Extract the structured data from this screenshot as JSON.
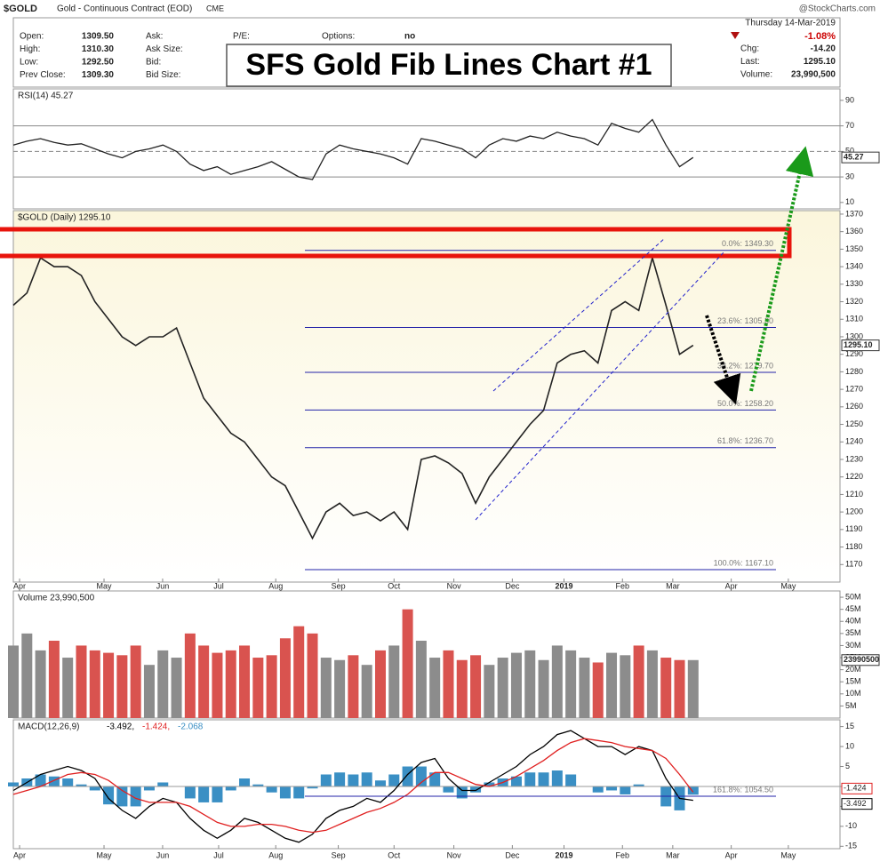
{
  "header": {
    "symbol": "$GOLD",
    "description": "Gold - Continuous Contract (EOD)",
    "exchange": "CME",
    "source": "@StockCharts.com",
    "quote": [
      [
        "Open:",
        "1309.50"
      ],
      [
        "High:",
        "1310.30"
      ],
      [
        "Low:",
        "1292.50"
      ],
      [
        "Prev Close:",
        "1309.30"
      ]
    ],
    "book": [
      "Ask:",
      "Ask Size:",
      "Bid:",
      "Bid Size:"
    ],
    "pe": "P/E:",
    "options": [
      "Options:",
      "no"
    ],
    "date": "Thursday  14-Mar-2019",
    "change_pct": "-1.08%",
    "summary": [
      [
        "Chg:",
        "-14.20"
      ],
      [
        "Last:",
        "1295.10"
      ],
      [
        "Volume:",
        "23,990,500"
      ]
    ]
  },
  "annotation": "SFS Gold Fib Lines  Chart #1",
  "chart_data": [
    {
      "type": "line",
      "title": "RSI(14) 45.27",
      "tag": "45.27",
      "x": [
        0,
        1,
        2,
        3,
        4,
        5,
        6,
        7,
        8,
        9,
        10,
        11,
        12,
        13,
        14,
        15,
        16,
        17,
        18,
        19,
        20,
        21,
        22,
        23,
        24,
        25,
        26,
        27,
        28,
        29,
        30,
        31,
        32,
        33,
        34,
        35,
        36,
        37,
        38,
        39,
        40,
        41,
        42,
        43,
        44,
        45,
        46,
        47,
        48,
        49,
        50
      ],
      "xlim": [
        0,
        60.8
      ],
      "ylim": [
        5,
        99
      ],
      "yticks": [
        10,
        30,
        50,
        70,
        90
      ],
      "ref_lines": [
        30,
        50,
        70
      ],
      "series": [
        {
          "color": "#222222",
          "values": [
            55,
            58,
            60,
            57,
            55,
            56,
            52,
            48,
            45,
            50,
            52,
            55,
            50,
            40,
            35,
            38,
            32,
            35,
            38,
            42,
            36,
            30,
            28,
            48,
            55,
            52,
            50,
            48,
            45,
            40,
            60,
            58,
            55,
            52,
            45,
            55,
            60,
            58,
            62,
            60,
            65,
            62,
            60,
            55,
            72,
            68,
            65,
            75,
            55,
            38,
            45.27
          ]
        }
      ]
    },
    {
      "type": "line",
      "title": "$GOLD (Daily) 1295.10",
      "tag": "1295.10",
      "x": [
        0,
        1,
        2,
        3,
        4,
        5,
        6,
        7,
        8,
        9,
        10,
        11,
        12,
        13,
        14,
        15,
        16,
        17,
        18,
        19,
        20,
        21,
        22,
        23,
        24,
        25,
        26,
        27,
        28,
        29,
        30,
        31,
        32,
        33,
        34,
        35,
        36,
        37,
        38,
        39,
        40,
        41,
        42,
        43,
        44,
        45,
        46,
        47,
        48,
        49,
        50
      ],
      "xlim": [
        0,
        60.8
      ],
      "ylim": [
        1160,
        1372
      ],
      "yticks": [
        1170,
        1180,
        1190,
        1200,
        1210,
        1220,
        1230,
        1240,
        1250,
        1260,
        1270,
        1280,
        1290,
        1300,
        1310,
        1320,
        1330,
        1340,
        1350,
        1360,
        1370
      ],
      "xticks": [
        {
          "value": 0.46,
          "label": "Apr"
        },
        {
          "value": 6.67,
          "label": "May"
        },
        {
          "value": 10.98,
          "label": "Jun"
        },
        {
          "value": 15.1,
          "label": "Jul"
        },
        {
          "value": 19.3,
          "label": "Aug"
        },
        {
          "value": 23.9,
          "label": "Sep"
        },
        {
          "value": 28,
          "label": "Oct"
        },
        {
          "value": 32.4,
          "label": "Nov"
        },
        {
          "value": 36.7,
          "label": "Dec"
        },
        {
          "value": 40.5,
          "label": "2019"
        },
        {
          "value": 44.8,
          "label": "Feb"
        },
        {
          "value": 48.5,
          "label": "Mar"
        },
        {
          "value": 52.8,
          "label": "Apr"
        },
        {
          "value": 57,
          "label": "May"
        }
      ],
      "fib_levels": [
        {
          "label": "0.0%: 1349.30",
          "value": 1349.3
        },
        {
          "label": "23.6%: 1305.30",
          "value": 1305.3
        },
        {
          "label": "38.2%: 1279.70",
          "value": 1279.7
        },
        {
          "label": "50.0%: 1258.20",
          "value": 1258.2
        },
        {
          "label": "61.8%: 1236.70",
          "value": 1236.7
        },
        {
          "label": "100.0%: 1167.10",
          "value": 1167.1
        }
      ],
      "series": [
        {
          "color": "#222222",
          "values": [
            1318,
            1325,
            1345,
            1340,
            1340,
            1335,
            1320,
            1310,
            1300,
            1295,
            1300,
            1300,
            1305,
            1285,
            1265,
            1255,
            1245,
            1240,
            1230,
            1220,
            1215,
            1200,
            1185,
            1200,
            1205,
            1198,
            1200,
            1195,
            1200,
            1190,
            1230,
            1232,
            1228,
            1222,
            1205,
            1220,
            1230,
            1240,
            1250,
            1258,
            1285,
            1290,
            1292,
            1285,
            1315,
            1320,
            1315,
            1345,
            1318,
            1290,
            1295.1
          ]
        }
      ]
    },
    {
      "type": "bar",
      "title": "Volume 23,990,500",
      "tag": "23990500",
      "up_color": "#8c8c8c",
      "down_color": "#d9534f",
      "x": [
        0,
        1,
        2,
        3,
        4,
        5,
        6,
        7,
        8,
        9,
        10,
        11,
        12,
        13,
        14,
        15,
        16,
        17,
        18,
        19,
        20,
        21,
        22,
        23,
        24,
        25,
        26,
        27,
        28,
        29,
        30,
        31,
        32,
        33,
        34,
        35,
        36,
        37,
        38,
        39,
        40,
        41,
        42,
        43,
        44,
        45,
        46,
        47,
        48,
        49,
        50
      ],
      "xlim": [
        0,
        60.8
      ],
      "ylim": [
        0,
        52600000
      ],
      "yticks": [
        {
          "value": 5000000,
          "label": "5M"
        },
        {
          "value": 10000000,
          "label": "10M"
        },
        {
          "value": 15000000,
          "label": "15M"
        },
        {
          "value": 20000000,
          "label": "20M"
        },
        {
          "value": 25000000,
          "label": "25M"
        },
        {
          "value": 30000000,
          "label": "30M"
        },
        {
          "value": 35000000,
          "label": "35M"
        },
        {
          "value": 40000000,
          "label": "40M"
        },
        {
          "value": 45000000,
          "label": "45M"
        },
        {
          "value": 50000000,
          "label": "50M"
        }
      ],
      "values": [
        30000000,
        35000000,
        28000000,
        32000000,
        25000000,
        30000000,
        28000000,
        27000000,
        26000000,
        30000000,
        22000000,
        28000000,
        25000000,
        35000000,
        30000000,
        27000000,
        28000000,
        30000000,
        25000000,
        26000000,
        33000000,
        38000000,
        35000000,
        25000000,
        24000000,
        26000000,
        22000000,
        28000000,
        30000000,
        45000000,
        32000000,
        25000000,
        28000000,
        24000000,
        26000000,
        22000000,
        25000000,
        27000000,
        28000000,
        24000000,
        30000000,
        28000000,
        25000000,
        23000000,
        27000000,
        26000000,
        30000000,
        28000000,
        25000000,
        24000000,
        23990500
      ]
    },
    {
      "type": "line",
      "title": "MACD(12,26,9)",
      "legend_values": [
        "-3.492,",
        "-1.424,",
        "-2.068"
      ],
      "tags": [
        "-1.424",
        "-3.492"
      ],
      "fib_extension": "161.8%: 1054.50",
      "x": [
        0,
        1,
        2,
        3,
        4,
        5,
        6,
        7,
        8,
        9,
        10,
        11,
        12,
        13,
        14,
        15,
        16,
        17,
        18,
        19,
        20,
        21,
        22,
        23,
        24,
        25,
        26,
        27,
        28,
        29,
        30,
        31,
        32,
        33,
        34,
        35,
        36,
        37,
        38,
        39,
        40,
        41,
        42,
        43,
        44,
        45,
        46,
        47,
        48,
        49,
        50
      ],
      "xlim": [
        0,
        60.8
      ],
      "ylim": [
        -15.6,
        16.7
      ],
      "yticks": [
        -15,
        -10,
        -5,
        0,
        5,
        10,
        15
      ],
      "xticks": [
        {
          "value": 0.46,
          "label": "Apr"
        },
        {
          "value": 6.67,
          "label": "May"
        },
        {
          "value": 10.98,
          "label": "Jun"
        },
        {
          "value": 15.1,
          "label": "Jul"
        },
        {
          "value": 19.3,
          "label": "Aug"
        },
        {
          "value": 23.9,
          "label": "Sep"
        },
        {
          "value": 28,
          "label": "Oct"
        },
        {
          "value": 32.4,
          "label": "Nov"
        },
        {
          "value": 36.7,
          "label": "Dec"
        },
        {
          "value": 40.5,
          "label": "2019"
        },
        {
          "value": 44.8,
          "label": "Feb"
        },
        {
          "value": 48.5,
          "label": "Mar"
        },
        {
          "value": 52.8,
          "label": "Apr"
        },
        {
          "value": 57,
          "label": "May"
        }
      ],
      "histogram": {
        "color": "#3a8fc4",
        "values": [
          1,
          2,
          3,
          2.5,
          2,
          0.5,
          -1,
          -4.5,
          -5,
          -5,
          -1,
          1,
          0,
          -3,
          -4,
          -4,
          -1,
          2,
          0.5,
          -1.5,
          -3,
          -3,
          -0.5,
          3,
          3.5,
          3,
          3.5,
          1.5,
          3,
          5,
          5,
          3.5,
          -1.5,
          -3,
          -1.5,
          1,
          2,
          2.5,
          3.5,
          3.5,
          4,
          3,
          0,
          -1.5,
          -1,
          -2,
          0.5,
          0,
          -5,
          -6,
          -2.068
        ]
      },
      "series": [
        {
          "color": "#000000",
          "values": [
            -1,
            1,
            3,
            4,
            5,
            4,
            2,
            -3,
            -6,
            -8,
            -5,
            -3,
            -4,
            -8,
            -11,
            -13,
            -11,
            -8,
            -9,
            -11,
            -13,
            -14,
            -12,
            -8,
            -6,
            -5,
            -3,
            -4,
            -1,
            3,
            6,
            7,
            2,
            -1,
            -1,
            1,
            3,
            5,
            8,
            10,
            13,
            14,
            12,
            10,
            10,
            8,
            10,
            9,
            2,
            -3,
            -3.492
          ]
        },
        {
          "color": "#e02020",
          "values": [
            -2,
            -1,
            0,
            1.5,
            3,
            3.5,
            3,
            1.5,
            -1,
            -3,
            -4,
            -4,
            -4,
            -5,
            -7,
            -9,
            -10,
            -10,
            -9.5,
            -9.5,
            -10,
            -11,
            -11.5,
            -11,
            -9.5,
            -8,
            -6.5,
            -5.5,
            -4,
            -2,
            1,
            3.5,
            3.5,
            2,
            0.5,
            0,
            1,
            2.5,
            4.5,
            6.5,
            9,
            11,
            12,
            11.5,
            11,
            10,
            9.5,
            9,
            7,
            3,
            -1.424
          ]
        }
      ]
    }
  ]
}
